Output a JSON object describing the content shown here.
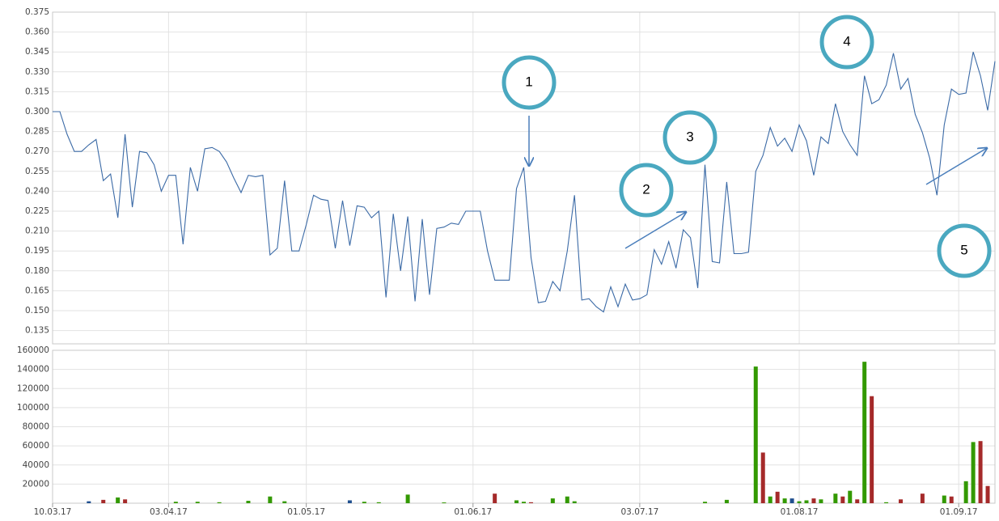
{
  "chart_data": [
    {
      "type": "line",
      "color": "#3b6aa6",
      "values": [
        0.3,
        0.3,
        0.283,
        0.27,
        0.27,
        0.275,
        0.279,
        0.248,
        0.253,
        0.22,
        0.283,
        0.228,
        0.27,
        0.269,
        0.26,
        0.24,
        0.252,
        0.252,
        0.2,
        0.258,
        0.24,
        0.272,
        0.273,
        0.27,
        0.262,
        0.25,
        0.239,
        0.252,
        0.251,
        0.252,
        0.192,
        0.197,
        0.248,
        0.195,
        0.195,
        0.215,
        0.237,
        0.234,
        0.233,
        0.197,
        0.233,
        0.199,
        0.229,
        0.228,
        0.22,
        0.225,
        0.16,
        0.223,
        0.18,
        0.221,
        0.157,
        0.219,
        0.162,
        0.212,
        0.213,
        0.216,
        0.215,
        0.225,
        0.225,
        0.225,
        0.195,
        0.173,
        0.173,
        0.173,
        0.242,
        0.258,
        0.19,
        0.156,
        0.157,
        0.172,
        0.165,
        0.195,
        0.237,
        0.158,
        0.159,
        0.153,
        0.149,
        0.168,
        0.153,
        0.17,
        0.158,
        0.159,
        0.162,
        0.196,
        0.185,
        0.202,
        0.182,
        0.211,
        0.205,
        0.167,
        0.26,
        0.187,
        0.186,
        0.247,
        0.193,
        0.193,
        0.194,
        0.255,
        0.267,
        0.288,
        0.274,
        0.28,
        0.27,
        0.29,
        0.278,
        0.252,
        0.281,
        0.276,
        0.306,
        0.285,
        0.275,
        0.267,
        0.327,
        0.306,
        0.309,
        0.32,
        0.344,
        0.317,
        0.325,
        0.298,
        0.284,
        0.265,
        0.237,
        0.29,
        0.317,
        0.313,
        0.314,
        0.345,
        0.327,
        0.301,
        0.338
      ],
      "ylim": [
        0.125,
        0.375
      ],
      "yticks": [
        0.135,
        {
          "value": 0.15,
          "label": "0.150"
        },
        0.165,
        {
          "value": 0.18,
          "label": "0.180"
        },
        0.195,
        {
          "value": 0.21,
          "label": "0.210"
        },
        0.225,
        {
          "value": 0.24,
          "label": "0.240"
        },
        0.255,
        {
          "value": 0.27,
          "label": "0.270"
        },
        0.285,
        {
          "value": 0.3,
          "label": "0.300"
        },
        0.315,
        {
          "value": 0.33,
          "label": "0.330"
        },
        0.345,
        {
          "value": 0.36,
          "label": "0.360"
        },
        0.375
      ],
      "grid": true,
      "annotations": [
        "1",
        "2",
        "3",
        "4",
        "5"
      ]
    },
    {
      "type": "bar",
      "categories": [
        "10.03.17",
        null,
        null,
        null,
        null,
        null,
        null,
        null,
        null,
        null,
        null,
        null,
        null,
        null,
        null,
        null,
        "03.04.17",
        null,
        null,
        null,
        null,
        null,
        null,
        null,
        null,
        null,
        null,
        null,
        null,
        null,
        null,
        null,
        null,
        null,
        null,
        "01.05.17",
        null,
        null,
        null,
        null,
        null,
        null,
        null,
        null,
        null,
        null,
        null,
        null,
        null,
        null,
        null,
        null,
        null,
        null,
        null,
        null,
        null,
        null,
        "01.06.17",
        null,
        null,
        null,
        null,
        null,
        null,
        null,
        null,
        null,
        null,
        null,
        null,
        null,
        null,
        null,
        null,
        null,
        null,
        null,
        null,
        null,
        null,
        "03.07.17",
        null,
        null,
        null,
        null,
        null,
        null,
        null,
        null,
        null,
        null,
        null,
        null,
        null,
        null,
        null,
        null,
        null,
        null,
        null,
        null,
        null,
        "01.08.17",
        null,
        null,
        null,
        null,
        null,
        null,
        null,
        null,
        null,
        null,
        null,
        null,
        null,
        null,
        null,
        null,
        null,
        null,
        null,
        null,
        null,
        "01.09.17",
        null,
        null,
        null,
        null,
        null
      ],
      "values": [
        0,
        0,
        0,
        0,
        0,
        2000,
        0,
        3500,
        0,
        6000,
        4000,
        0,
        0,
        0,
        0,
        0,
        0,
        1500,
        0,
        0,
        1500,
        0,
        0,
        1000,
        0,
        0,
        0,
        2500,
        0,
        0,
        7000,
        0,
        2000,
        0,
        0,
        0,
        0,
        0,
        0,
        0,
        0,
        3000,
        0,
        1500,
        0,
        1000,
        0,
        0,
        0,
        9000,
        0,
        0,
        0,
        0,
        800,
        0,
        0,
        0,
        0,
        0,
        0,
        10000,
        0,
        0,
        3000,
        1500,
        1000,
        0,
        0,
        5000,
        0,
        7000,
        2000,
        0,
        0,
        0,
        0,
        0,
        0,
        0,
        0,
        0,
        0,
        0,
        0,
        0,
        0,
        0,
        0,
        0,
        1500,
        0,
        0,
        3500,
        0,
        0,
        0,
        143000,
        53000,
        7000,
        12000,
        5000,
        5000,
        2000,
        3000,
        5000,
        4000,
        0,
        10000,
        7000,
        13000,
        4000,
        148000,
        112000,
        0,
        1000,
        0,
        4000,
        0,
        0,
        10000,
        0,
        0,
        8000,
        7000,
        0,
        23000,
        64000,
        65000,
        18000,
        0
      ],
      "colors": [
        null,
        null,
        null,
        null,
        null,
        "#1f4f8f",
        null,
        "#a52a2a",
        null,
        "#339900",
        "#a52a2a",
        null,
        null,
        null,
        null,
        null,
        null,
        "#339900",
        null,
        null,
        "#339900",
        null,
        null,
        "#339900",
        null,
        null,
        null,
        "#339900",
        null,
        null,
        "#339900",
        null,
        "#339900",
        null,
        null,
        null,
        null,
        null,
        null,
        null,
        null,
        "#1f4f8f",
        null,
        "#339900",
        null,
        "#339900",
        null,
        null,
        null,
        "#339900",
        null,
        null,
        null,
        null,
        "#339900",
        null,
        null,
        null,
        null,
        null,
        null,
        "#a52a2a",
        null,
        null,
        "#339900",
        "#339900",
        "#a52a2a",
        null,
        null,
        "#339900",
        null,
        "#339900",
        "#339900",
        null,
        null,
        null,
        null,
        null,
        null,
        null,
        null,
        null,
        null,
        null,
        null,
        null,
        null,
        null,
        null,
        null,
        "#339900",
        null,
        null,
        "#339900",
        null,
        null,
        null,
        "#339900",
        "#a52a2a",
        "#339900",
        "#a52a2a",
        "#339900",
        "#1f4f8f",
        "#339900",
        "#339900",
        "#a52a2a",
        "#339900",
        null,
        "#339900",
        "#a52a2a",
        "#339900",
        "#a52a2a",
        "#339900",
        "#a52a2a",
        null,
        "#339900",
        null,
        "#a52a2a",
        null,
        null,
        "#a52a2a",
        null,
        null,
        "#339900",
        "#a52a2a",
        null,
        "#339900",
        "#339900",
        "#a52a2a",
        "#a52a2a",
        null
      ],
      "ylim": [
        0,
        160000
      ],
      "yticks": [
        20000,
        40000,
        60000,
        80000,
        100000,
        120000,
        140000,
        160000
      ],
      "grid": true
    }
  ]
}
